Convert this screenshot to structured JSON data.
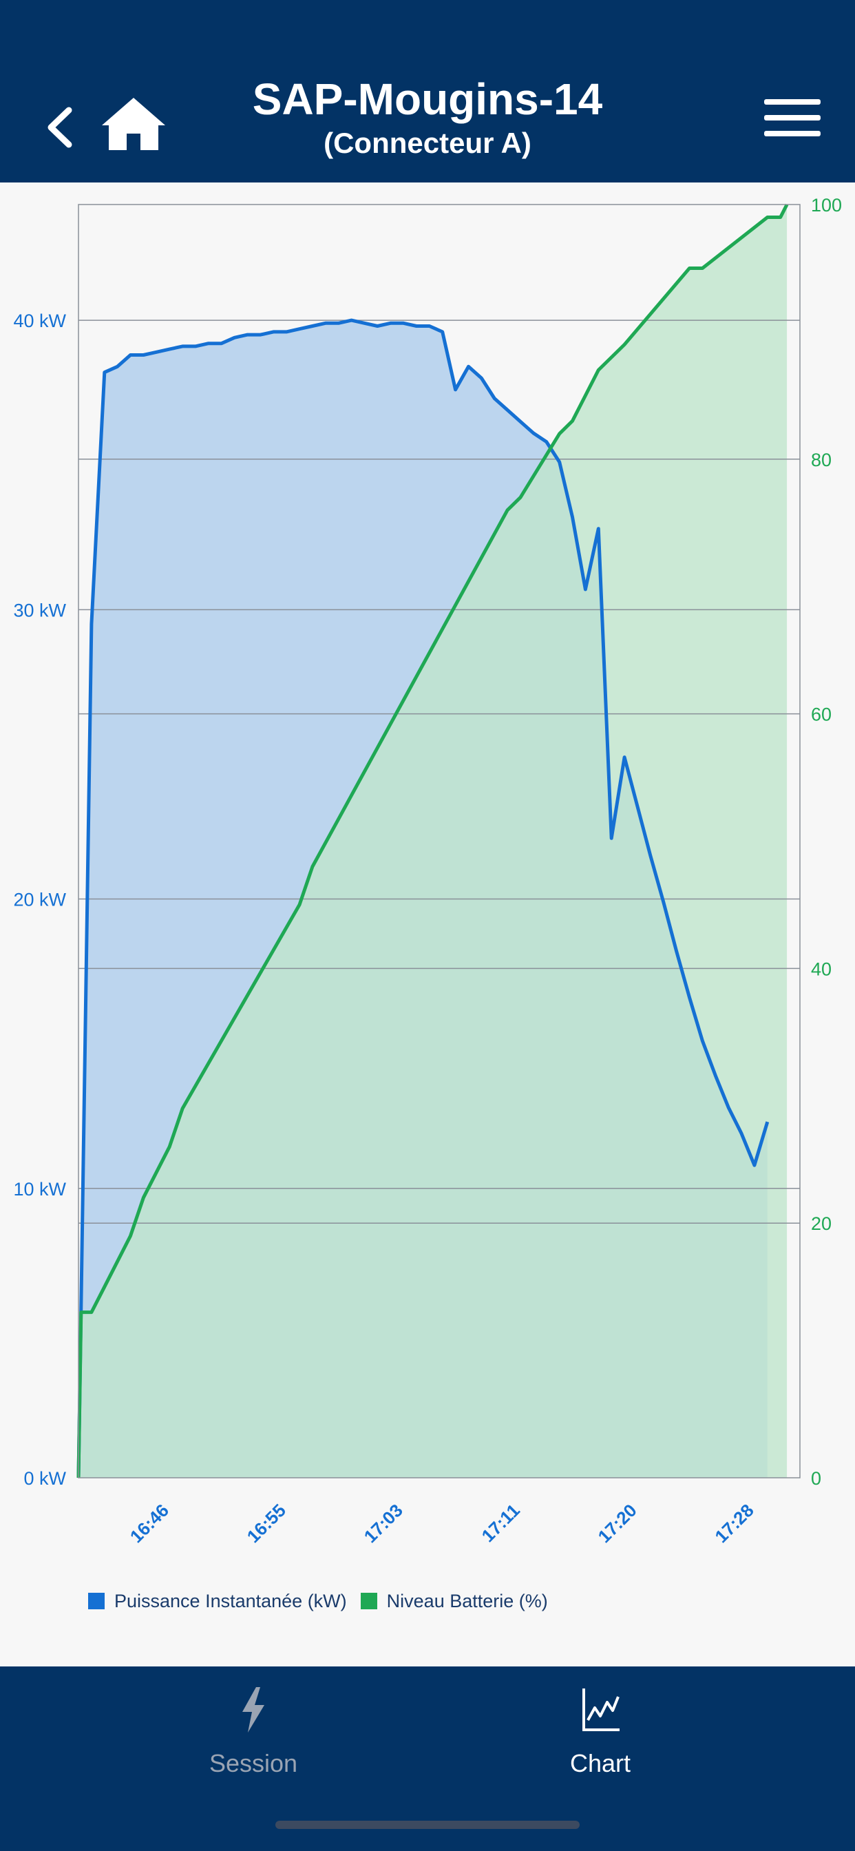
{
  "header": {
    "title": "SAP-Mougins-14",
    "subtitle": "(Connecteur A)",
    "icons": [
      "back-icon",
      "home-icon",
      "menu-icon"
    ]
  },
  "chart_data": {
    "type": "area",
    "x_ticks": [
      "16:46",
      "16:55",
      "17:03",
      "17:11",
      "17:20",
      "17:28"
    ],
    "y_left": {
      "ticks": [
        "0 kW",
        "10 kW",
        "20 kW",
        "30 kW",
        "40 kW"
      ],
      "range": [
        0,
        44
      ]
    },
    "y_right": {
      "ticks": [
        "0",
        "20",
        "40",
        "60",
        "80",
        "100"
      ],
      "range": [
        0,
        100
      ]
    },
    "x_range_min": [
      0,
      55.5
    ],
    "x_tick_minutes": [
      6.5,
      15.5,
      24.5,
      33.5,
      42.5,
      51.5
    ],
    "grid": true,
    "legend_position": "bottom-left",
    "series": [
      {
        "name": "Puissance Instantanée (kW)",
        "axis": "left",
        "color": "#1570d3",
        "fill": "#bcd5ee",
        "points": [
          [
            0,
            0
          ],
          [
            1,
            29.5
          ],
          [
            2,
            38.2
          ],
          [
            3,
            38.4
          ],
          [
            4,
            38.8
          ],
          [
            5,
            38.8
          ],
          [
            6,
            38.9
          ],
          [
            7,
            39
          ],
          [
            8,
            39.1
          ],
          [
            9,
            39.1
          ],
          [
            10,
            39.2
          ],
          [
            11,
            39.2
          ],
          [
            12,
            39.4
          ],
          [
            13,
            39.5
          ],
          [
            14,
            39.5
          ],
          [
            15,
            39.6
          ],
          [
            16,
            39.6
          ],
          [
            17,
            39.7
          ],
          [
            18,
            39.8
          ],
          [
            19,
            39.9
          ],
          [
            20,
            39.9
          ],
          [
            21,
            40
          ],
          [
            22,
            39.9
          ],
          [
            23,
            39.8
          ],
          [
            24,
            39.9
          ],
          [
            25,
            39.9
          ],
          [
            26,
            39.8
          ],
          [
            27,
            39.8
          ],
          [
            28,
            39.6
          ],
          [
            29,
            37.6
          ],
          [
            30,
            38.4
          ],
          [
            31,
            38
          ],
          [
            32,
            37.3
          ],
          [
            33,
            36.9
          ],
          [
            34,
            36.5
          ],
          [
            35,
            36.1
          ],
          [
            36,
            35.8
          ],
          [
            37,
            35.1
          ],
          [
            38,
            33.2
          ],
          [
            39,
            30.7
          ],
          [
            40,
            32.8
          ],
          [
            41,
            22.1
          ],
          [
            42,
            24.9
          ],
          [
            43,
            23.2
          ],
          [
            44,
            21.5
          ],
          [
            45,
            19.9
          ],
          [
            46,
            18.2
          ],
          [
            47,
            16.6
          ],
          [
            48,
            15.1
          ],
          [
            49,
            13.9
          ],
          [
            50,
            12.8
          ],
          [
            51,
            11.9
          ],
          [
            52,
            10.8
          ],
          [
            53,
            12.3
          ]
        ]
      },
      {
        "name": "Niveau Batterie (%)",
        "axis": "right",
        "color": "#1fa854",
        "fill": "#bfe5cc",
        "points": [
          [
            0,
            0
          ],
          [
            0.2,
            13
          ],
          [
            1,
            13
          ],
          [
            2,
            15
          ],
          [
            4,
            19
          ],
          [
            5,
            22
          ],
          [
            7,
            26
          ],
          [
            8,
            29
          ],
          [
            17,
            45
          ],
          [
            18,
            48
          ],
          [
            33,
            76
          ],
          [
            34,
            77
          ],
          [
            37,
            82
          ],
          [
            38,
            83
          ],
          [
            39,
            85
          ],
          [
            40,
            87
          ],
          [
            41,
            88
          ],
          [
            42,
            89
          ],
          [
            47,
            95
          ],
          [
            48,
            95
          ],
          [
            53,
            99
          ],
          [
            54,
            99
          ],
          [
            54.5,
            100
          ]
        ]
      }
    ]
  },
  "legend": {
    "power_label": "Puissance Instantanée (kW)",
    "power_color": "#1570d3",
    "battery_label": "Niveau Batterie (%)",
    "battery_color": "#1fa854"
  },
  "tabbar": {
    "session_label": "Session",
    "chart_label": "Chart",
    "icons": [
      "lightning-icon",
      "chart-icon"
    ]
  },
  "colors": {
    "navy": "#033365",
    "power_blue": "#1570d3",
    "battery_green": "#1fa854"
  }
}
